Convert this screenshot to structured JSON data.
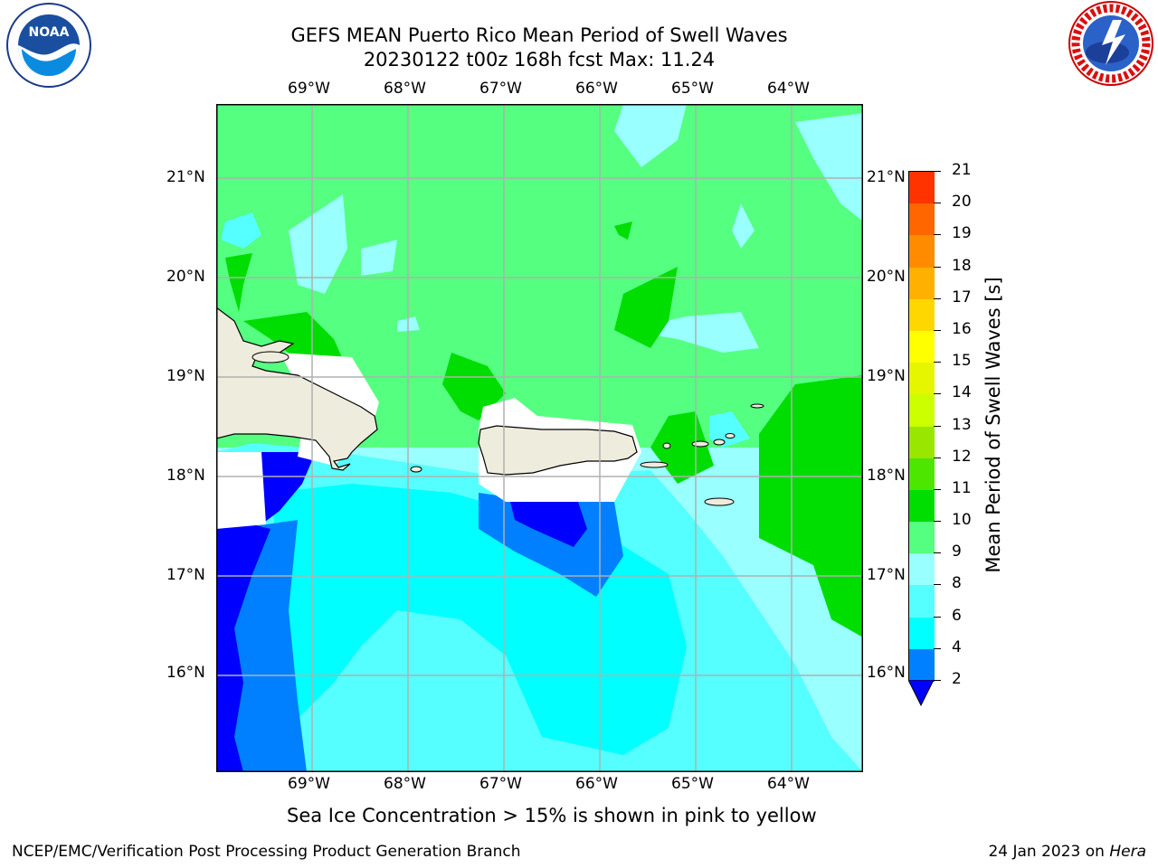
{
  "header": {
    "title_line1": "GEFS MEAN Puerto Rico Mean Period of Swell Waves",
    "title_line2": "20230122 t00z 168h fcst   Max: 11.24"
  },
  "logos": {
    "left": {
      "icon": "noaa-logo",
      "text": "NOAA"
    },
    "right": {
      "icon": "national-weather-service-logo",
      "text": "NATIONAL WEATHER SERVICE"
    }
  },
  "map": {
    "lon_labels": [
      "69°W",
      "68°W",
      "67°W",
      "66°W",
      "65°W",
      "64°W"
    ],
    "lat_labels": [
      "21°N",
      "20°N",
      "19°N",
      "18°N",
      "17°N",
      "16°N"
    ],
    "ocean_base_color": "#55ff80",
    "land_color": "#eeecdc",
    "grid_color": "#b0b0b0"
  },
  "colorbar": {
    "title": "Mean Period of Swell Waves [s]",
    "tick_labels": [
      "21",
      "20",
      "19",
      "18",
      "17",
      "16",
      "15",
      "14",
      "13",
      "12",
      "11",
      "10",
      "9",
      "8",
      "6",
      "4",
      "2"
    ],
    "colors": [
      "#ff0000",
      "#ff3300",
      "#ff6600",
      "#ff8c00",
      "#ffb000",
      "#ffd700",
      "#ffff00",
      "#e6f500",
      "#ccff00",
      "#99e600",
      "#4ce600",
      "#00dd00",
      "#55ff80",
      "#99ffff",
      "#55ffff",
      "#00ffff",
      "#0080ff",
      "#0000ff"
    ],
    "extend_color": "#0000ff"
  },
  "notes": {
    "sea_ice": "Sea Ice Concentration > 15% is shown in pink to yellow"
  },
  "footer": {
    "left": "NCEP/EMC/Verification Post Processing Product Generation Branch",
    "date": "24 Jan 2023 on",
    "host": "Hera"
  }
}
